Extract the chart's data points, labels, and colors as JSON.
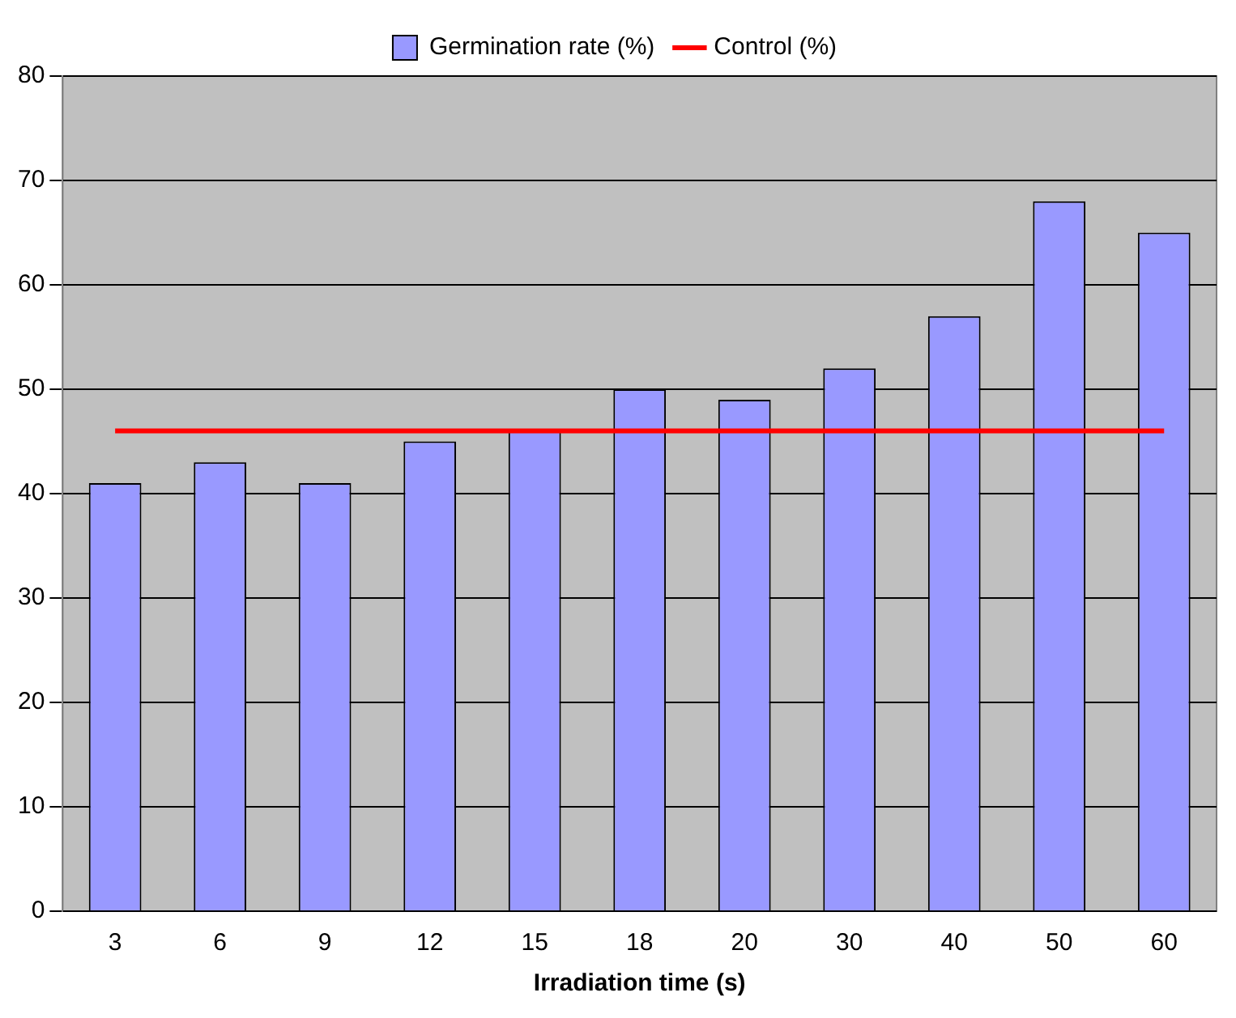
{
  "chart_data": {
    "type": "bar",
    "xlabel": "Irradiation time (s)",
    "categories": [
      "3",
      "6",
      "9",
      "12",
      "15",
      "18",
      "20",
      "30",
      "40",
      "50",
      "60"
    ],
    "series": [
      {
        "name": "Germination rate (%)",
        "color": "#9999ff",
        "values": [
          41,
          43,
          41,
          45,
          46,
          50,
          49,
          52,
          57,
          68,
          65
        ]
      },
      {
        "name": "Control (%)",
        "type": "line",
        "color": "#ff0000",
        "values": [
          46,
          46,
          46,
          46,
          46,
          46,
          46,
          46,
          46,
          46,
          46
        ]
      }
    ],
    "ylim": [
      0,
      80
    ],
    "yticks": [
      0,
      10,
      20,
      30,
      40,
      50,
      60,
      70,
      80
    ],
    "grid": "y",
    "legend": "top",
    "marker": "none"
  }
}
